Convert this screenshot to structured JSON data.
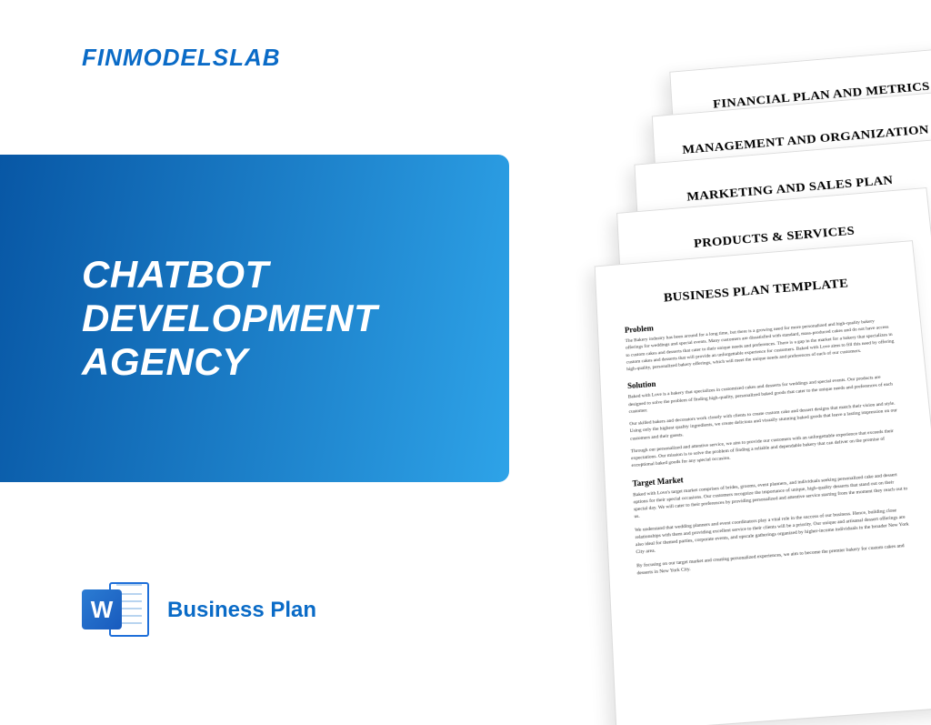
{
  "brand": {
    "name": "FINMODELSLAB",
    "color": "#0a6bc7"
  },
  "hero": {
    "title": "CHATBOT\nDEVELOPMENT\nAGENCY",
    "gradient_from": "#0857a5",
    "gradient_to": "#2ea3e8",
    "text_color": "#ffffff"
  },
  "doc": {
    "label": "Business Plan",
    "label_color": "#0a6bc7",
    "icon_letter": "W"
  },
  "pages": {
    "p5_title": "FINANCIAL PLAN AND METRICS",
    "p4_title": "MANAGEMENT AND ORGANIZATION",
    "p3_title": "MARKETING AND SALES PLAN",
    "p2_title": "PRODUCTS & SERVICES",
    "p1_title": "BUSINESS PLAN TEMPLATE",
    "sections": {
      "s1": "Problem",
      "s1_body": "The Bakery industry has been around for a long time, but there is a growing need for more personalized and high-quality bakery offerings for weddings and special events. Many customers are dissatisfied with standard, mass-produced cakes and do not have access to custom cakes and desserts that cater to their unique needs and preferences. There is a gap in the market for a bakery that specializes in custom cakes and desserts that will provide an unforgettable experience for customers. Baked with Love aims to fill this need by offering high-quality, personalized bakery offerings, which will meet the unique needs and preferences of each of our customers.",
      "s2": "Solution",
      "s2_body1": "Baked with Love is a bakery that specializes in customized cakes and desserts for weddings and special events. Our products are designed to solve the problem of finding high-quality, personalized baked goods that cater to the unique needs and preferences of each customer.",
      "s2_body2": "Our skilled bakers and decorators work closely with clients to create custom cake and dessert designs that match their vision and style. Using only the highest quality ingredients, we create delicious and visually stunning baked goods that leave a lasting impression on our customers and their guests.",
      "s2_body3": "Through our personalized and attentive service, we aim to provide our customers with an unforgettable experience that exceeds their expectations. Our mission is to solve the problem of finding a reliable and dependable bakery that can deliver on the promise of exceptional baked goods for any special occasion.",
      "s3": "Target Market",
      "s3_body1": "Baked with Love's target market comprises of brides, grooms, event planners, and individuals seeking personalized cake and dessert options for their special occasions. Our customers recognize the importance of unique, high-quality desserts that stand out on their special day. We will cater to their preferences by providing personalized and attentive service starting from the moment they reach out to us.",
      "s3_body2": "We understand that wedding planners and event coordinators play a vital role in the success of our business. Hence, building close relationships with them and providing excellent service to their clients will be a priority. Our unique and artisanal dessert offerings are also ideal for themed parties, corporate events, and upscale gatherings organized by higher-income individuals in the broader New York City area.",
      "s3_body3": "By focusing on our target market and creating personalized experiences, we aim to become the premier bakery for custom cakes and desserts in New York City."
    }
  },
  "styling": {
    "page_bg": "#ffffff",
    "page_border": "#dcdcdc",
    "shadow": "rgba(0,0,0,0.12)",
    "body_font": "Times New Roman"
  }
}
